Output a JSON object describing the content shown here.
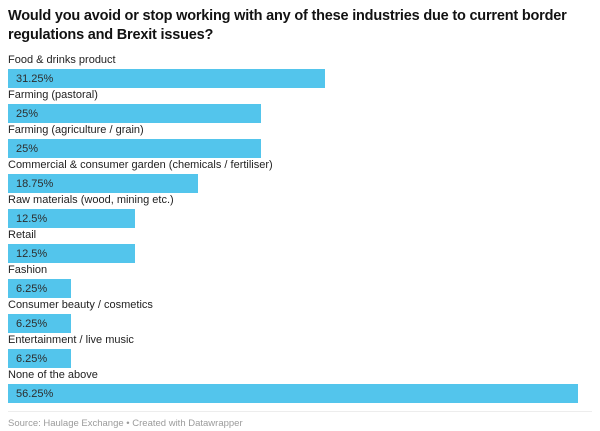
{
  "header": {
    "title": "Would you avoid or stop working with any of these industries due to current border regulations and Brexit issues?"
  },
  "footer": {
    "text": "Source: Haulage Exchange • Created with Datawrapper"
  },
  "colors": {
    "bar": "#53c5ec",
    "title": "#121212",
    "category_label": "#222222",
    "value_label": "#2d2d2d",
    "footer_text": "#9b9b9b",
    "divider": "#ededed",
    "background": "#ffffff"
  },
  "chart_data": {
    "type": "bar",
    "orientation": "horizontal",
    "title": "Would you avoid or stop working with any of these industries due to current border regulations and Brexit issues?",
    "categories": [
      "Food & drinks product",
      "Farming (pastoral)",
      "Farming (agriculture / grain)",
      "Commercial & consumer garden (chemicals / fertiliser)",
      "Raw materials (wood, mining etc.)",
      "Retail",
      "Fashion",
      "Consumer beauty / cosmetics",
      "Entertainment / live music",
      "None of the above"
    ],
    "values": [
      31.25,
      25,
      25,
      18.75,
      12.5,
      12.5,
      6.25,
      6.25,
      6.25,
      56.25
    ],
    "value_labels": [
      "31.25%",
      "25%",
      "25%",
      "18.75%",
      "12.5%",
      "12.5%",
      "6.25%",
      "6.25%",
      "6.25%",
      "56.25%"
    ],
    "xlabel": "",
    "ylabel": "",
    "xlim": [
      0,
      57.6
    ],
    "grid": false,
    "legend": false,
    "value_labels_position": "inside-left",
    "source": "Haulage Exchange",
    "credit": "Created with Datawrapper"
  }
}
